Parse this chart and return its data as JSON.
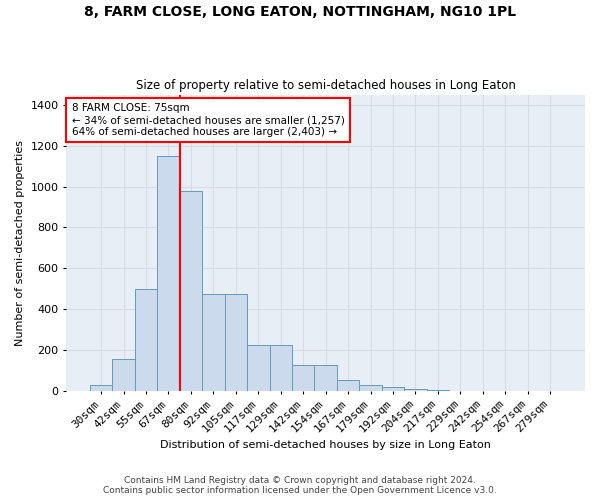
{
  "title_line1": "8, FARM CLOSE, LONG EATON, NOTTINGHAM, NG10 1PL",
  "title_line2": "Size of property relative to semi-detached houses in Long Eaton",
  "xlabel": "Distribution of semi-detached houses by size in Long Eaton",
  "ylabel": "Number of semi-detached properties",
  "bar_color": "#ccdaed",
  "bar_edge_color": "#6699bb",
  "categories": [
    "30sqm",
    "42sqm",
    "55sqm",
    "67sqm",
    "80sqm",
    "92sqm",
    "105sqm",
    "117sqm",
    "129sqm",
    "142sqm",
    "154sqm",
    "167sqm",
    "179sqm",
    "192sqm",
    "204sqm",
    "217sqm",
    "229sqm",
    "242sqm",
    "254sqm",
    "267sqm",
    "279sqm"
  ],
  "values": [
    30,
    155,
    500,
    1150,
    980,
    475,
    475,
    225,
    225,
    130,
    130,
    55,
    32,
    18,
    10,
    4,
    0,
    0,
    0,
    0,
    0
  ],
  "ylim": [
    0,
    1450
  ],
  "yticks": [
    0,
    200,
    400,
    600,
    800,
    1000,
    1200,
    1400
  ],
  "vline_index": 3,
  "vline_color": "red",
  "annotation_title": "8 FARM CLOSE: 75sqm",
  "annotation_smaller": "← 34% of semi-detached houses are smaller (1,257)",
  "annotation_larger": "64% of semi-detached houses are larger (2,403) →",
  "grid_color": "#d5dce8",
  "bg_color": "#e8eef6",
  "footer_line1": "Contains HM Land Registry data © Crown copyright and database right 2024.",
  "footer_line2": "Contains public sector information licensed under the Open Government Licence v3.0."
}
